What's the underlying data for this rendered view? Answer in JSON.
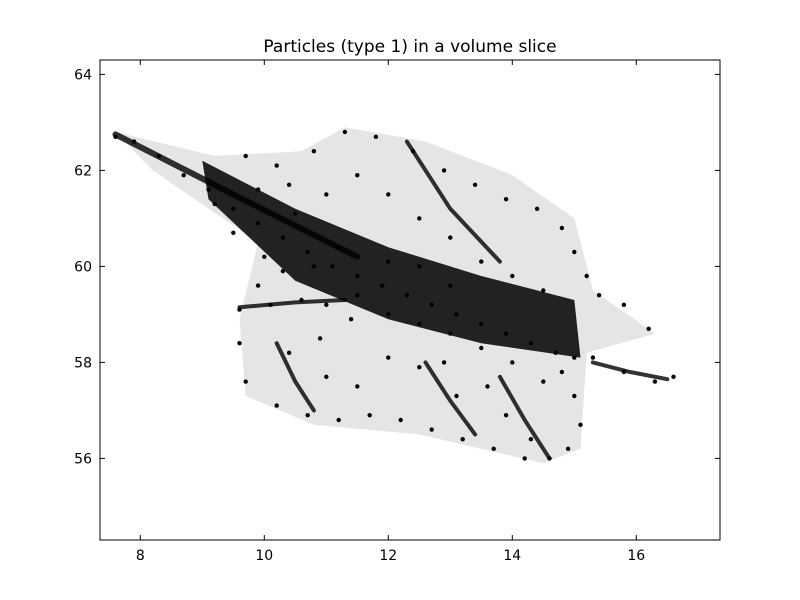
{
  "chart_data": {
    "type": "scatter",
    "title": "Particles (type 1) in a volume slice",
    "xlabel": "",
    "ylabel": "",
    "xlim": [
      7.35,
      17.35
    ],
    "ylim": [
      54.3,
      64.3
    ],
    "xticks": [
      8,
      10,
      12,
      14,
      16
    ],
    "yticks": [
      56,
      58,
      60,
      62,
      64
    ],
    "xtick_labels": [
      "8",
      "10",
      "12",
      "14",
      "16"
    ],
    "ytick_labels": [
      "56",
      "58",
      "60",
      "62",
      "64"
    ],
    "grid": false,
    "legend": "none",
    "marker_color": "#000000",
    "series": [
      {
        "description_points": "dense particle cloud approximated as point samples",
        "points": [
          [
            7.6,
            62.7
          ],
          [
            7.9,
            62.6
          ],
          [
            8.3,
            62.3
          ],
          [
            8.7,
            61.9
          ],
          [
            9.1,
            61.6
          ],
          [
            9.5,
            61.2
          ],
          [
            9.9,
            60.9
          ],
          [
            10.3,
            60.6
          ],
          [
            10.7,
            60.3
          ],
          [
            11.1,
            60.0
          ],
          [
            11.5,
            59.8
          ],
          [
            11.9,
            59.6
          ],
          [
            12.3,
            59.4
          ],
          [
            12.7,
            59.2
          ],
          [
            13.1,
            59.0
          ],
          [
            13.5,
            58.8
          ],
          [
            13.9,
            58.6
          ],
          [
            14.3,
            58.4
          ],
          [
            14.7,
            58.2
          ],
          [
            15.0,
            58.1
          ],
          [
            9.7,
            62.3
          ],
          [
            10.2,
            62.1
          ],
          [
            10.8,
            62.4
          ],
          [
            11.3,
            62.8
          ],
          [
            11.8,
            62.7
          ],
          [
            12.4,
            62.4
          ],
          [
            12.9,
            62.0
          ],
          [
            13.4,
            61.7
          ],
          [
            13.9,
            61.4
          ],
          [
            14.4,
            61.2
          ],
          [
            14.8,
            60.8
          ],
          [
            15.0,
            60.3
          ],
          [
            15.2,
            59.8
          ],
          [
            15.4,
            59.4
          ],
          [
            15.8,
            59.2
          ],
          [
            16.2,
            58.7
          ],
          [
            9.6,
            59.1
          ],
          [
            10.1,
            59.2
          ],
          [
            10.6,
            59.3
          ],
          [
            11.0,
            59.2
          ],
          [
            15.3,
            58.1
          ],
          [
            15.8,
            57.8
          ],
          [
            16.3,
            57.6
          ],
          [
            16.6,
            57.7
          ],
          [
            9.6,
            58.4
          ],
          [
            9.7,
            57.6
          ],
          [
            10.2,
            57.1
          ],
          [
            10.7,
            56.9
          ],
          [
            11.2,
            56.8
          ],
          [
            11.7,
            56.9
          ],
          [
            12.2,
            56.8
          ],
          [
            12.7,
            56.6
          ],
          [
            13.2,
            56.4
          ],
          [
            13.7,
            56.2
          ],
          [
            14.2,
            56.0
          ],
          [
            14.6,
            56.0
          ],
          [
            14.9,
            56.2
          ],
          [
            15.1,
            56.7
          ],
          [
            15.0,
            57.3
          ],
          [
            14.8,
            57.8
          ],
          [
            13.6,
            57.5
          ],
          [
            13.9,
            56.9
          ],
          [
            14.3,
            56.4
          ],
          [
            12.9,
            58.0
          ],
          [
            13.1,
            57.3
          ],
          [
            11.0,
            57.7
          ],
          [
            11.5,
            57.5
          ],
          [
            12.0,
            58.1
          ],
          [
            12.5,
            57.9
          ],
          [
            10.4,
            58.2
          ],
          [
            10.9,
            58.5
          ],
          [
            11.4,
            58.9
          ],
          [
            10.0,
            60.2
          ],
          [
            10.5,
            61.1
          ],
          [
            11.0,
            61.5
          ],
          [
            11.5,
            61.9
          ],
          [
            12.0,
            61.5
          ],
          [
            12.5,
            61.0
          ],
          [
            13.0,
            60.6
          ],
          [
            13.5,
            60.1
          ],
          [
            14.0,
            59.8
          ],
          [
            14.5,
            59.5
          ],
          [
            12.0,
            60.1
          ],
          [
            12.5,
            60.0
          ],
          [
            13.0,
            59.6
          ],
          [
            11.5,
            59.4
          ],
          [
            12.0,
            59.0
          ],
          [
            12.5,
            58.8
          ],
          [
            13.0,
            58.6
          ],
          [
            13.5,
            58.3
          ],
          [
            14.0,
            58.0
          ],
          [
            14.5,
            57.6
          ],
          [
            9.9,
            59.6
          ],
          [
            10.3,
            59.9
          ],
          [
            10.8,
            60.0
          ],
          [
            11.2,
            60.4
          ],
          [
            9.2,
            61.3
          ],
          [
            9.5,
            60.7
          ],
          [
            9.9,
            61.6
          ],
          [
            10.4,
            61.7
          ]
        ]
      }
    ]
  }
}
